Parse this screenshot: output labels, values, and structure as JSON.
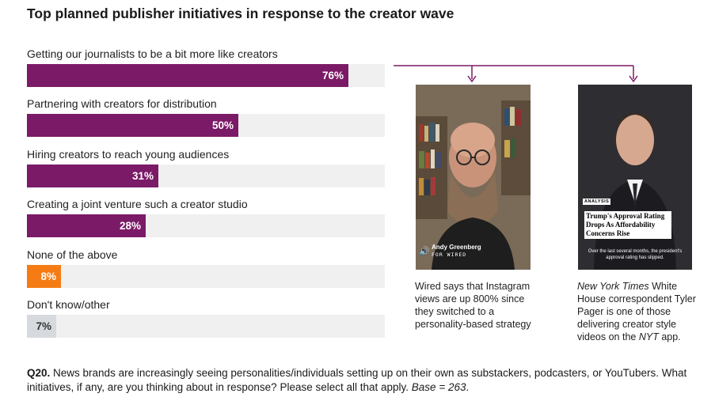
{
  "chart_data": {
    "type": "bar",
    "orientation": "horizontal",
    "title": "Top planned publisher initiatives in response to the creator wave",
    "xlim": [
      0,
      100
    ],
    "categories": [
      "Getting our journalists to be a bit more like creators",
      "Partnering with creators for distribution",
      "Hiring creators to reach young audiences",
      "Creating a joint venture such a creator studio",
      "None of the above",
      "Don't know/other"
    ],
    "values": [
      76,
      50,
      31,
      28,
      8,
      7
    ],
    "value_labels": [
      "76%",
      "50%",
      "31%",
      "28%",
      "8%",
      "7%"
    ],
    "bar_colors": [
      "#7b1a67",
      "#7b1a67",
      "#7b1a67",
      "#7b1a67",
      "#f57c14",
      "#d6d9de"
    ]
  },
  "images": {
    "wired": {
      "name": "Andy Greenberg",
      "brand": "FOR WIRED",
      "caption": "Wired says that Instagram views are up 800% since they switched to a personality-based strategy"
    },
    "nyt": {
      "tag": "ANALYSIS",
      "headline": "Trump's Approval Rating Drops As Affordability Concerns Rise",
      "overlay": "Over the last several months, the president's approval rating has slipped.",
      "caption_italic_1": "New York Times",
      "caption_mid": " White House correspondent Tyler Pager is one of those delivering creator style videos on the ",
      "caption_italic_2": "NYT",
      "caption_end": " app."
    }
  },
  "footnote": {
    "code": "Q20.",
    "text": " News brands are increasingly seeing personalities/individuals setting up on their own as substackers, podcasters, or YouTubers. What initiatives, if any, are you thinking about in response? Please select all that apply. ",
    "base": "Base = 263",
    "end": "."
  },
  "colors": {
    "accent": "#7b1a67",
    "orange": "#f57c14",
    "grey": "#d6d9de",
    "track": "#f0f0f0"
  }
}
